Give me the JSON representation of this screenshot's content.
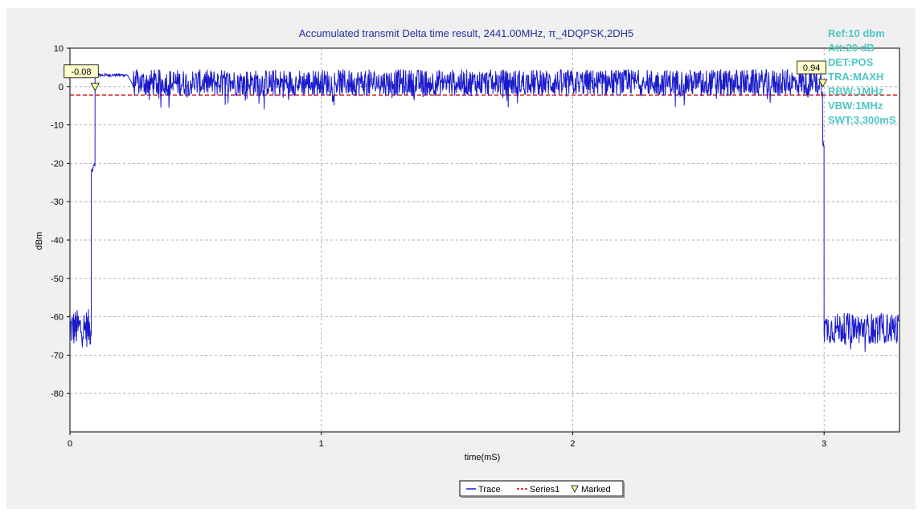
{
  "chart_data": {
    "type": "line",
    "title": "Accumulated transmit Delta time result, 2441.00MHz, π_4DQPSK,2DH5",
    "xlabel": "time(mS)",
    "ylabel": "dBm",
    "xlim": [
      0,
      3.3
    ],
    "ylim": [
      -90,
      10
    ],
    "x_ticks": [
      0,
      1,
      2,
      3
    ],
    "x_tick_labels": [
      "0",
      "1",
      "2",
      "3"
    ],
    "y_ticks": [
      10,
      0,
      -10,
      -20,
      -30,
      -40,
      -50,
      -60,
      -70,
      -80
    ],
    "y_tick_labels": [
      "10",
      "0",
      "-10",
      "-20",
      "-30",
      "-40",
      "-50",
      "-60",
      "-70",
      "-80"
    ],
    "grid": true,
    "legend_placement": "bottom-center",
    "series": [
      {
        "name": "Trace",
        "color": "#1a1acc",
        "style": "noisy-signal",
        "segments": [
          {
            "x_start": 0.0,
            "x_end": 0.085,
            "level": -63,
            "noise": 5
          },
          {
            "x_start": 0.085,
            "x_end": 0.09,
            "level": -22,
            "noise": 1
          },
          {
            "x_start": 0.09,
            "x_end": 0.1,
            "level": -21,
            "noise": 1
          },
          {
            "x_start": 0.1,
            "x_end": 0.23,
            "level": 3,
            "noise": 0.4
          },
          {
            "x_start": 0.25,
            "x_end": 2.995,
            "level": 1,
            "noise": 3.5
          },
          {
            "x_start": 2.995,
            "x_end": 3.0,
            "level": -15,
            "noise": 1
          },
          {
            "x_start": 3.0,
            "x_end": 3.3,
            "level": -63,
            "noise": 4
          }
        ]
      },
      {
        "name": "Series1",
        "color": "#cc0000",
        "style": "dashed",
        "points": [
          [
            0.0,
            -2.2
          ],
          [
            3.3,
            -2.2
          ]
        ]
      }
    ],
    "legend_items": [
      {
        "name": "Trace",
        "symbol": "solid-line",
        "color": "#1a1acc"
      },
      {
        "name": "Series1",
        "symbol": "dashed-line",
        "color": "#cc0000"
      },
      {
        "name": "Marked",
        "symbol": "triangle-marker",
        "color": "#000000"
      }
    ],
    "markers": [
      {
        "x": 0.1,
        "y": 0,
        "label": "-0.08"
      },
      {
        "x": 2.995,
        "y": 1,
        "label": "0.94"
      }
    ],
    "info_text": [
      "Ref:10 dbm",
      "Att:20 dB",
      "DET:POS",
      "TRA:MAXH",
      "RBW:1MHz",
      "VBW:1MHz",
      "SWT:3.300mS"
    ]
  }
}
